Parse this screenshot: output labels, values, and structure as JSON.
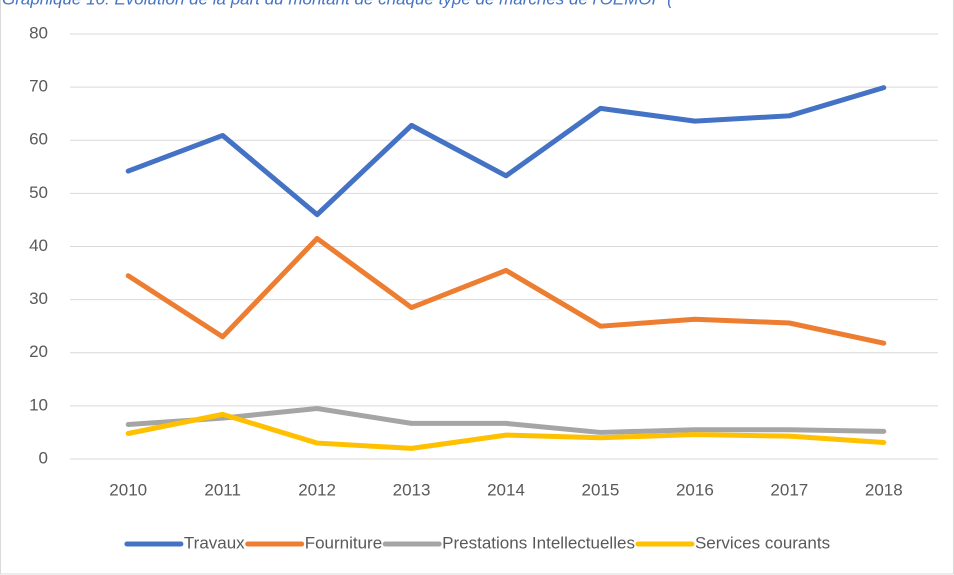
{
  "chart_data": {
    "type": "line",
    "title": "Graphique 10: Evolution de la part du montant de chaque type de marchés de l'OEMOP (",
    "categories": [
      "2010",
      "2011",
      "2012",
      "2013",
      "2014",
      "2015",
      "2016",
      "2017",
      "2018"
    ],
    "series": [
      {
        "name": "Travaux",
        "color": "#4472c4",
        "values": [
          54.2,
          60.9,
          46,
          62.8,
          53.3,
          66,
          63.6,
          64.6,
          69.9
        ]
      },
      {
        "name": "Fourniture",
        "color": "#ed7d31",
        "values": [
          34.5,
          23,
          41.5,
          28.5,
          35.5,
          25,
          26.3,
          25.6,
          21.8
        ]
      },
      {
        "name": "Prestations Intellectuelles",
        "color": "#a5a5a5",
        "values": [
          6.5,
          7.7,
          9.5,
          6.7,
          6.7,
          5,
          5.5,
          5.5,
          5.2
        ]
      },
      {
        "name": "Services courants",
        "color": "#ffc000",
        "values": [
          4.8,
          8.4,
          3,
          2,
          4.5,
          4,
          4.6,
          4.3,
          3.1
        ]
      }
    ],
    "ylim": [
      0,
      80
    ],
    "yticks": [
      0,
      10,
      20,
      30,
      40,
      50,
      60,
      70,
      80
    ],
    "grid": true,
    "legend": "bottom"
  }
}
